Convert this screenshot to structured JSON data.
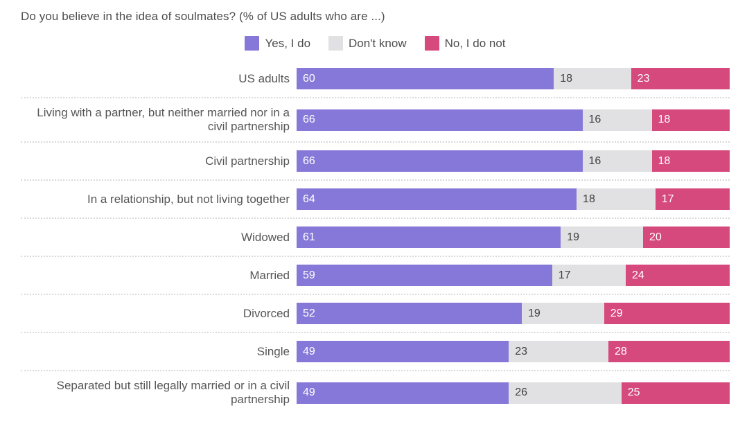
{
  "chart_data": {
    "type": "bar",
    "orientation": "horizontal",
    "stacked": true,
    "title": "Do you believe in the idea of soulmates? (% of US adults who are ...)",
    "legend_position": "top-center",
    "value_labels": "inside-start",
    "xlim": [
      0,
      100
    ],
    "grid": false,
    "categories": [
      "US adults",
      "Living with a partner, but neither married nor in a civil partnership",
      "Civil partnership",
      "In a relationship, but not living together",
      "Widowed",
      "Married",
      "Divorced",
      "Single",
      "Separated but still legally married or in a civil partnership"
    ],
    "series": [
      {
        "name": "Yes, I do",
        "color": "#8678d8",
        "label_color": "#ffffff",
        "values": [
          60,
          66,
          66,
          64,
          61,
          59,
          52,
          49,
          49
        ]
      },
      {
        "name": "Don't know",
        "color": "#e1e0e2",
        "label_color": "#3f3f3f",
        "values": [
          18,
          16,
          16,
          18,
          19,
          17,
          19,
          23,
          26
        ]
      },
      {
        "name": "No, I do not",
        "color": "#d6497c",
        "label_color": "#ffffff",
        "values": [
          23,
          18,
          18,
          17,
          20,
          24,
          29,
          28,
          25
        ]
      }
    ]
  },
  "colors": {
    "title_text": "#4d4d4d",
    "category_text": "#565656",
    "separator": "#d9d9d9",
    "background": "#ffffff"
  }
}
